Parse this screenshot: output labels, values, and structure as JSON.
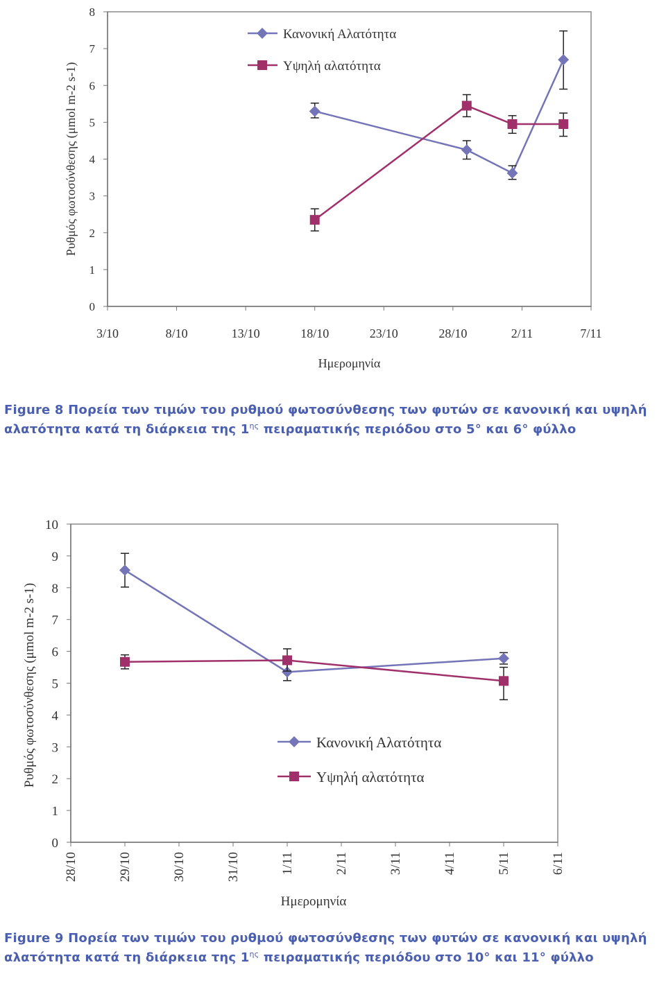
{
  "charts": [
    {
      "type": "line",
      "ylabel": "Ρυθμός φωτοσύνθεσης (μmol m-2 s-1)",
      "xlabel": "Ημερομηνία",
      "ylim": [
        0,
        8
      ],
      "yticks": [
        "0",
        "1",
        "2",
        "3",
        "4",
        "5",
        "6",
        "7",
        "8"
      ],
      "x_tick_labels": [
        "3/10",
        "8/10",
        "13/10",
        "18/10",
        "23/10",
        "28/10",
        "2/11",
        "7/11"
      ],
      "x_axis_days_range": [
        0,
        35
      ],
      "legend_position": "top-left",
      "x": [
        "18/10",
        "29/10",
        "1/11",
        "5/11"
      ],
      "x_days": [
        15,
        26,
        29.3,
        33
      ],
      "series": [
        {
          "name": "Κανονική Αλατότητα",
          "marker": "diamond",
          "color": "#7474b8",
          "values": [
            5.3,
            4.25,
            3.62,
            6.7
          ],
          "err_low": [
            5.12,
            4.0,
            3.45,
            5.9
          ],
          "err_high": [
            5.52,
            4.5,
            3.82,
            7.48
          ]
        },
        {
          "name": "Υψηλή αλατότητα",
          "marker": "square",
          "color": "#a0306a",
          "values": [
            2.35,
            5.45,
            4.95,
            4.95
          ],
          "err_low": [
            2.05,
            5.15,
            4.7,
            4.62
          ],
          "err_high": [
            2.65,
            5.75,
            5.18,
            5.25
          ]
        }
      ]
    },
    {
      "type": "line",
      "ylabel": "Ρυθμός φωτοσύνθεσης (μmol m-2 s-1)",
      "xlabel": "Ημερομηνία",
      "ylim": [
        0,
        10
      ],
      "yticks": [
        "0",
        "1",
        "2",
        "3",
        "4",
        "5",
        "6",
        "7",
        "8",
        "9",
        "10"
      ],
      "x_tick_labels": [
        "28/10",
        "29/10",
        "30/10",
        "31/10",
        "1/11",
        "2/11",
        "3/11",
        "4/11",
        "5/11",
        "6/11"
      ],
      "legend_position": "center-right",
      "x": [
        "29/10",
        "1/11",
        "5/11"
      ],
      "x_index": [
        1,
        4,
        8
      ],
      "series": [
        {
          "name": "Κανονική Αλατότητα",
          "marker": "diamond",
          "color": "#7474b8",
          "values": [
            8.55,
            5.35,
            5.78
          ],
          "err_low": [
            8.02,
            5.08,
            5.6
          ],
          "err_high": [
            9.08,
            5.62,
            5.96
          ]
        },
        {
          "name": "Υψηλή αλατότητα",
          "marker": "square",
          "color": "#a0306a",
          "values": [
            5.67,
            5.72,
            5.07
          ],
          "err_low": [
            5.45,
            5.38,
            4.48
          ],
          "err_high": [
            5.89,
            6.08,
            5.5
          ]
        }
      ]
    }
  ],
  "captions": {
    "fig8": {
      "pre": "Figure 8 Πορεία  των  τιμών  του  ρυθμού  φωτοσύνθεσης  των  φυτών  σε κανονική και υψηλή αλατότητα  κατά  τη διάρκεια  της 1",
      "sup": "ης",
      "post": " πειραματικής περιόδου στο 5° και 6° φύλλο"
    },
    "fig9": {
      "pre": "Figure 9 Πορεία  των  τιμών  του  ρυθμού  φωτοσύνθεσης  των  φυτών  σε κανονική και υψηλή αλατότητα  κατά  τη διάρκεια  της 1",
      "sup": "ης",
      "post": " πειραματικής περιόδου στο 10° και 11° φύλλο"
    }
  }
}
